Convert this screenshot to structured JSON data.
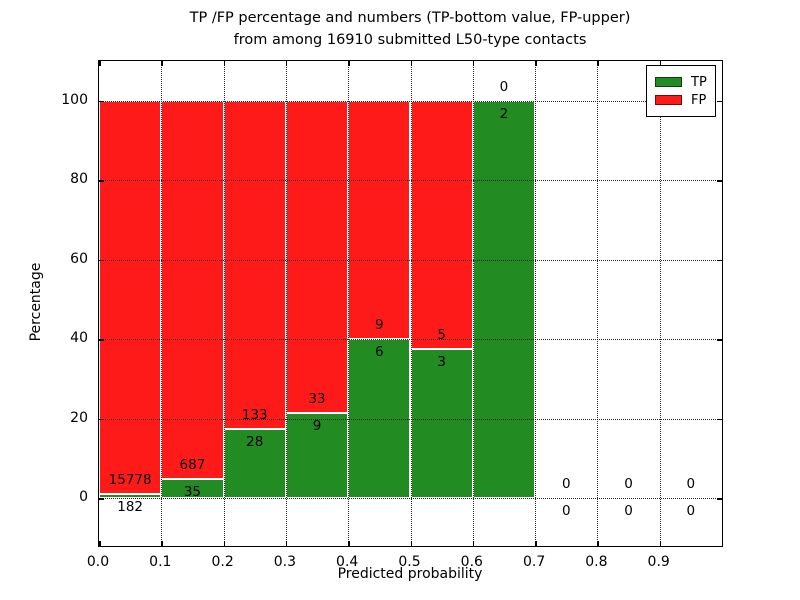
{
  "header": {
    "title_line1": "TP /FP percentage and numbers (TP-bottom value, FP-upper)",
    "title_line2": "from among 16910 submitted L50-type contacts"
  },
  "colors": {
    "tp": "#228b22",
    "fp": "#ff1a1a",
    "grid": "#000000",
    "bar_edge": "#ffffff",
    "axis": "#000000"
  },
  "legend": {
    "entries": [
      {
        "label": "TP",
        "color_key": "tp"
      },
      {
        "label": "FP",
        "color_key": "fp"
      }
    ]
  },
  "chart_data": {
    "type": "bar",
    "stacked": true,
    "title": "TP /FP percentage and numbers (TP-bottom value, FP-upper) from among 16910 submitted L50-type contacts",
    "xlabel": "Predicted probability",
    "ylabel": "Percentage",
    "xlim": [
      0.0,
      1.0
    ],
    "ylim": [
      -12,
      110
    ],
    "grid": true,
    "legend_position": "upper right",
    "bin_width": 0.1,
    "x_ticks": [
      "0.0",
      "0.1",
      "0.2",
      "0.3",
      "0.4",
      "0.5",
      "0.6",
      "0.7",
      "0.8",
      "0.9"
    ],
    "y_ticks": [
      "0",
      "20",
      "40",
      "60",
      "80",
      "100"
    ],
    "categories": [
      "0.0-0.1",
      "0.1-0.2",
      "0.2-0.3",
      "0.3-0.4",
      "0.4-0.5",
      "0.5-0.6",
      "0.6-0.7",
      "0.7-0.8",
      "0.8-0.9",
      "0.9-1.0"
    ],
    "bin_starts": [
      0.0,
      0.1,
      0.2,
      0.3,
      0.4,
      0.5,
      0.6,
      0.7,
      0.8,
      0.9
    ],
    "series": [
      {
        "name": "TP",
        "color_key": "tp",
        "counts": [
          182,
          35,
          28,
          9,
          6,
          3,
          2,
          0,
          0,
          0
        ],
        "pct": [
          1.14,
          4.85,
          17.39,
          21.43,
          40.0,
          37.5,
          100.0,
          0,
          0,
          0
        ]
      },
      {
        "name": "FP",
        "color_key": "fp",
        "counts": [
          15778,
          687,
          133,
          33,
          9,
          5,
          0,
          0,
          0,
          0
        ],
        "pct": [
          98.86,
          95.15,
          82.61,
          78.57,
          60.0,
          62.5,
          0.0,
          0,
          0,
          0
        ]
      }
    ]
  }
}
